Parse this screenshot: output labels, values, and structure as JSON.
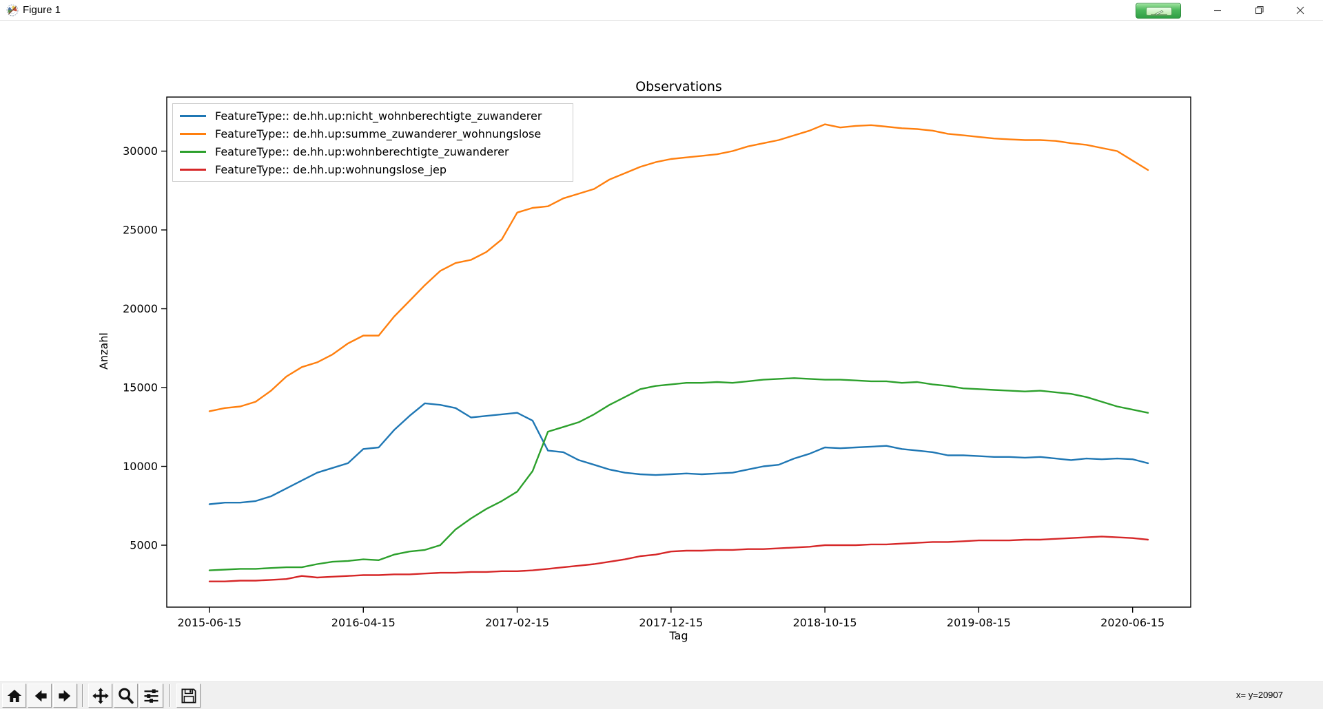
{
  "window": {
    "title": "Figure 1",
    "controls": [
      {
        "name": "annotate-overlay",
        "icon": "pen-icon"
      },
      {
        "name": "minimize",
        "icon": "minimize-icon"
      },
      {
        "name": "maximize-restore",
        "icon": "restore-icon"
      },
      {
        "name": "close",
        "icon": "close-icon"
      }
    ]
  },
  "toolbar": {
    "buttons": [
      {
        "name": "home",
        "icon": "home-icon"
      },
      {
        "name": "back",
        "icon": "arrow-left-icon"
      },
      {
        "name": "forward",
        "icon": "arrow-right-icon"
      },
      {
        "name": "pan",
        "icon": "move-icon"
      },
      {
        "name": "zoom-to-rect",
        "icon": "magnifier-icon"
      },
      {
        "name": "configure-subplots",
        "icon": "sliders-icon"
      },
      {
        "name": "save",
        "icon": "floppy-icon"
      }
    ],
    "status": "x= y=20907"
  },
  "chart_data": {
    "type": "line",
    "title": "Observations",
    "xlabel": "Tag",
    "ylabel": "Anzahl",
    "grid": false,
    "legend_position": "upper left",
    "ylim": [
      1070,
      33430
    ],
    "y_ticks": [
      5000,
      10000,
      15000,
      20000,
      25000,
      30000
    ],
    "y_tick_labels": [
      "5000",
      "10000",
      "15000",
      "20000",
      "25000",
      "30000"
    ],
    "x_tick_indices": [
      0,
      10,
      20,
      30,
      40,
      50,
      60
    ],
    "x_tick_labels": [
      "2015-06-15",
      "2016-04-15",
      "2017-02-15",
      "2017-12-15",
      "2018-10-15",
      "2019-08-15",
      "2020-06-15"
    ],
    "x": [
      "2015-06-15",
      "2015-07-15",
      "2015-08-15",
      "2015-09-15",
      "2015-10-15",
      "2015-11-15",
      "2015-12-15",
      "2016-01-15",
      "2016-02-15",
      "2016-03-15",
      "2016-04-15",
      "2016-05-15",
      "2016-06-15",
      "2016-07-15",
      "2016-08-15",
      "2016-09-15",
      "2016-10-15",
      "2016-11-15",
      "2016-12-15",
      "2017-01-15",
      "2017-02-15",
      "2017-03-15",
      "2017-04-15",
      "2017-05-15",
      "2017-06-15",
      "2017-07-15",
      "2017-08-15",
      "2017-09-15",
      "2017-10-15",
      "2017-11-15",
      "2017-12-15",
      "2018-01-15",
      "2018-02-15",
      "2018-03-15",
      "2018-04-15",
      "2018-05-15",
      "2018-06-15",
      "2018-07-15",
      "2018-08-15",
      "2018-09-15",
      "2018-10-15",
      "2018-11-15",
      "2018-12-15",
      "2019-01-15",
      "2019-02-15",
      "2019-03-15",
      "2019-04-15",
      "2019-05-15",
      "2019-06-15",
      "2019-07-15",
      "2019-08-15",
      "2019-09-15",
      "2019-10-15",
      "2019-11-15",
      "2019-12-15",
      "2020-01-15",
      "2020-02-15",
      "2020-03-15",
      "2020-04-15",
      "2020-05-15",
      "2020-06-15",
      "2020-07-15"
    ],
    "series": [
      {
        "name": "FeatureType:: de.hh.up:nicht_wohnberechtigte_zuwanderer",
        "color": "#1f77b4",
        "values": [
          7600,
          7700,
          7700,
          7800,
          8100,
          8600,
          9100,
          9600,
          9900,
          10200,
          11100,
          11200,
          12300,
          13200,
          14000,
          13900,
          13700,
          13100,
          13200,
          13300,
          13400,
          12900,
          11000,
          10900,
          10400,
          10100,
          9800,
          9600,
          9500,
          9450,
          9500,
          9550,
          9500,
          9550,
          9600,
          9800,
          10000,
          10100,
          10500,
          10800,
          11200,
          11150,
          11200,
          11250,
          11300,
          11100,
          11000,
          10900,
          10700,
          10700,
          10650,
          10600,
          10600,
          10550,
          10600,
          10500,
          10400,
          10500,
          10450,
          10500,
          10450,
          10200
        ]
      },
      {
        "name": "FeatureType:: de.hh.up:summe_zuwanderer_wohnungslose",
        "color": "#ff7f0e",
        "values": [
          13500,
          13700,
          13800,
          14100,
          14800,
          15700,
          16300,
          16600,
          17100,
          17800,
          18300,
          18300,
          19500,
          20500,
          21500,
          22400,
          22900,
          23100,
          23600,
          24400,
          26100,
          26400,
          26500,
          27000,
          27300,
          27600,
          28200,
          28600,
          29000,
          29300,
          29500,
          29600,
          29700,
          29800,
          30000,
          30300,
          30500,
          30700,
          31000,
          31300,
          31700,
          31500,
          31600,
          31650,
          31550,
          31450,
          31400,
          31300,
          31100,
          31000,
          30900,
          30800,
          30750,
          30700,
          30700,
          30650,
          30500,
          30400,
          30200,
          30000,
          29400,
          28800
        ]
      },
      {
        "name": "FeatureType:: de.hh.up:wohnberechtigte_zuwanderer",
        "color": "#2ca02c",
        "values": [
          3400,
          3450,
          3500,
          3500,
          3550,
          3600,
          3600,
          3800,
          3950,
          4000,
          4100,
          4050,
          4400,
          4600,
          4700,
          5000,
          6000,
          6700,
          7300,
          7800,
          8400,
          9700,
          12200,
          12500,
          12800,
          13300,
          13900,
          14400,
          14900,
          15100,
          15200,
          15300,
          15300,
          15350,
          15300,
          15400,
          15500,
          15550,
          15600,
          15550,
          15500,
          15500,
          15450,
          15400,
          15400,
          15300,
          15350,
          15200,
          15100,
          14950,
          14900,
          14850,
          14800,
          14750,
          14800,
          14700,
          14600,
          14400,
          14100,
          13800,
          13600,
          13400
        ]
      },
      {
        "name": "FeatureType:: de.hh.up:wohnungslose_jep",
        "color": "#d62728",
        "values": [
          2700,
          2700,
          2750,
          2750,
          2800,
          2850,
          3050,
          2950,
          3000,
          3050,
          3100,
          3100,
          3150,
          3150,
          3200,
          3250,
          3250,
          3300,
          3300,
          3350,
          3350,
          3400,
          3500,
          3600,
          3700,
          3800,
          3950,
          4100,
          4300,
          4400,
          4600,
          4650,
          4650,
          4700,
          4700,
          4750,
          4750,
          4800,
          4850,
          4900,
          5000,
          5000,
          5000,
          5050,
          5050,
          5100,
          5150,
          5200,
          5200,
          5250,
          5300,
          5300,
          5300,
          5350,
          5350,
          5400,
          5450,
          5500,
          5550,
          5500,
          5450,
          5350
        ]
      }
    ]
  }
}
